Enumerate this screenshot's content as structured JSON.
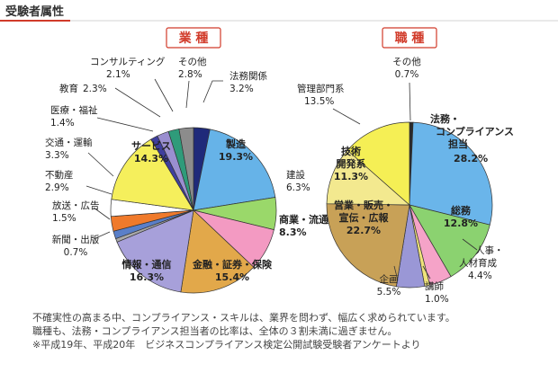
{
  "header": {
    "title": "受験者属性"
  },
  "colors": {
    "accent": "#d13b2a"
  },
  "chart_data": [
    {
      "type": "pie",
      "title": "業 種",
      "slices": [
        {
          "label": "法務関係",
          "value": 3.2,
          "value_text": "3.2%",
          "color": "#1f2a7a"
        },
        {
          "label": "製造",
          "value": 19.3,
          "value_text": "19.3%",
          "color": "#66b3e8"
        },
        {
          "label": "建設",
          "value": 6.3,
          "value_text": "6.3%",
          "color": "#9ad86a"
        },
        {
          "label": "商業・流通",
          "value": 8.3,
          "value_text": "8.3%",
          "color": "#f39ac2"
        },
        {
          "label": "金融・証券・保険",
          "value": 15.4,
          "value_text": "15.4%",
          "color": "#e2a84a"
        },
        {
          "label": "情報・通信",
          "value": 16.3,
          "value_text": "16.3%",
          "color": "#a7a0da"
        },
        {
          "label": "新聞・出版",
          "value": 0.7,
          "value_text": "0.7%",
          "color": "#a9a9a9"
        },
        {
          "label": "放送・広告",
          "value": 1.5,
          "value_text": "1.5%",
          "color": "#5a7fc8"
        },
        {
          "label": "不動産",
          "value": 2.9,
          "value_text": "2.9%",
          "color": "#f07a2b"
        },
        {
          "label": "交通・運輸",
          "value": 3.3,
          "value_text": "3.3%",
          "color": "#ffffff"
        },
        {
          "label": "サービス",
          "value": 14.3,
          "value_text": "14.3%",
          "color": "#f5ef5c"
        },
        {
          "label": "医療・福祉",
          "value": 1.4,
          "value_text": "1.4%",
          "color": "#3f3f9e"
        },
        {
          "label": "教育",
          "value": 2.3,
          "value_text": "2.3%",
          "color": "#9a8fd0"
        },
        {
          "label": "コンサルティング",
          "value": 2.1,
          "value_text": "2.1%",
          "color": "#2f9b7a"
        },
        {
          "label": "その他",
          "value": 2.8,
          "value_text": "2.8%",
          "color": "#8c8c8c"
        }
      ]
    },
    {
      "type": "pie",
      "title": "職 種",
      "slices": [
        {
          "label": "その他",
          "value": 0.7,
          "value_text": "0.7%",
          "color": "#2a2a2a"
        },
        {
          "label": "法務・コンプライアンス担当",
          "value": 28.2,
          "value_text": "28.2%",
          "color": "#6ab5ea"
        },
        {
          "label": "総務",
          "value": 12.8,
          "value_text": "12.8%",
          "color": "#8bd270"
        },
        {
          "label": "人事・人材育成",
          "value": 4.4,
          "value_text": "4.4%",
          "color": "#f5a3c8"
        },
        {
          "label": "講師",
          "value": 1.0,
          "value_text": "1.0%",
          "color": "#eee27a"
        },
        {
          "label": "企画",
          "value": 5.5,
          "value_text": "5.5%",
          "color": "#9a97d6"
        },
        {
          "label": "営業・販売・宣伝・広報",
          "value": 22.7,
          "value_text": "22.7%",
          "color": "#c8a157"
        },
        {
          "label": "技術開発系",
          "value": 11.3,
          "value_text": "11.3%",
          "color": "#f3e98f"
        },
        {
          "label": "管理部門系",
          "value": 13.5,
          "value_text": "13.5%",
          "color": "#f5ef55"
        }
      ]
    }
  ],
  "notes": [
    "不確実性の高まる中、コンプライアンス・スキルは、業界を問わず、幅広く求められています。",
    "職種も、法務・コンプライアンス担当者の比率は、全体の３割未満に過ぎません。",
    "※平成19年、平成20年　ビジネスコンプライアンス検定公開試験受験者アンケートより"
  ]
}
